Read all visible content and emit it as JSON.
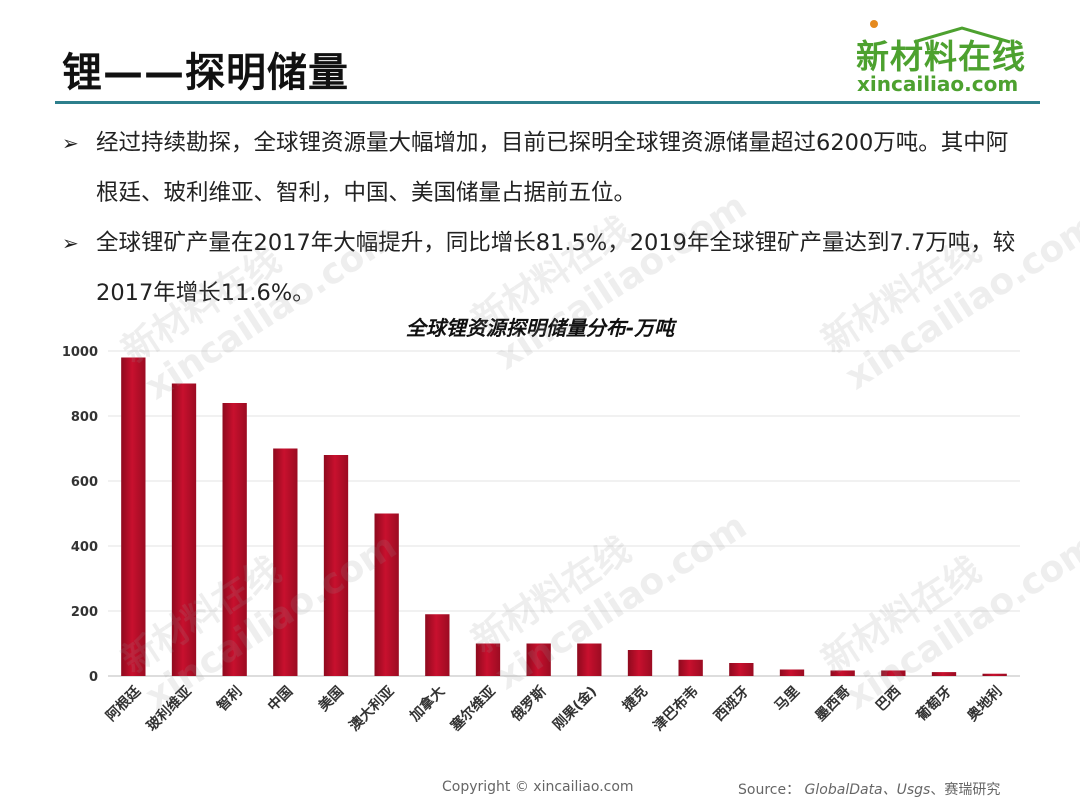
{
  "slide": {
    "title": "锂——探明储量",
    "logo_cn": "新材料在线",
    "logo_en": "xincailiao.com"
  },
  "bullets": [
    {
      "mark": "➢",
      "text": "经过持续勘探，全球锂资源量大幅增加，目前已探明全球锂资源储量超过6200万吨。其中阿根廷、玻利维亚、智利，中国、美国储量占据前五位。"
    },
    {
      "mark": "➢",
      "text": "全球锂矿产量在2017年大幅提升，同比增长81.5%，2019年全球锂矿产量达到7.7万吨，较2017年增长11.6%。"
    }
  ],
  "watermark": {
    "cn": "新材料在线",
    "en": "xincailiao.com"
  },
  "footer": {
    "copyright": "Copyright © xincailiao.com",
    "source_prefix": "Source：",
    "source_items": "GlobalData、Usgs",
    "source_suffix": "、赛瑞研究"
  },
  "chart_data": {
    "type": "bar",
    "title": "全球锂资源探明储量分布-万吨",
    "categories": [
      "阿根廷",
      "玻利维亚",
      "智利",
      "中国",
      "美国",
      "澳大利亚",
      "加拿大",
      "塞尔维亚",
      "俄罗斯",
      "刚果(金)",
      "捷克",
      "津巴布韦",
      "西班牙",
      "马里",
      "墨西哥",
      "巴西",
      "葡萄牙",
      "奥地利"
    ],
    "values": [
      980,
      900,
      840,
      700,
      680,
      500,
      190,
      100,
      100,
      100,
      80,
      50,
      40,
      20,
      17,
      17,
      12,
      7
    ],
    "ylim": [
      0,
      1000
    ],
    "yticks": [
      0,
      200,
      400,
      600,
      800,
      1000
    ],
    "bar_color": "#c8102e",
    "grid": true
  }
}
